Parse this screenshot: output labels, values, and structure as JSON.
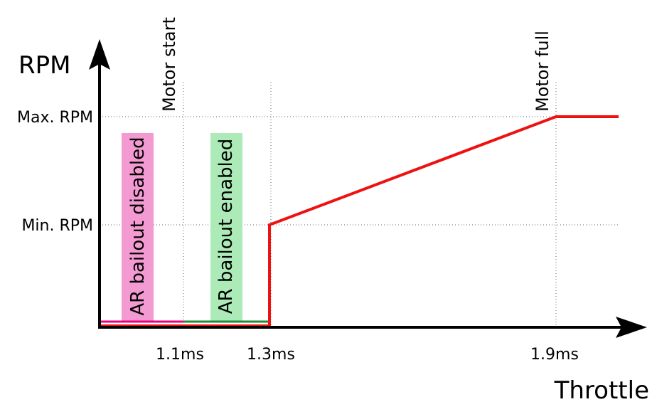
{
  "axes": {
    "y_title": "RPM",
    "x_title": "Throttle"
  },
  "y_ticks": [
    "Max. RPM",
    "Min. RPM"
  ],
  "x_ticks": [
    "1.1ms",
    "1.3ms",
    "1.9ms"
  ],
  "markers": {
    "motor_start": "Motor start",
    "motor_full": "Motor full"
  },
  "bands": {
    "disabled": {
      "label": "AR bailout disabled",
      "color": "#f49ad3",
      "line_color": "#e6007e"
    },
    "enabled": {
      "label": "AR bailout enabled",
      "color": "#acebb8",
      "line_color": "#238a3a"
    }
  },
  "curve": {
    "color": "#ee1111"
  }
}
